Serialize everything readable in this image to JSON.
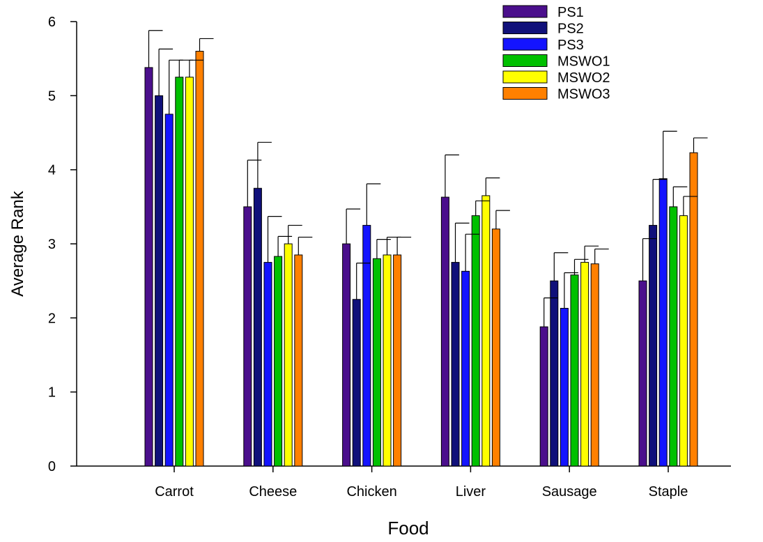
{
  "chart_data": {
    "type": "bar",
    "title": "",
    "xlabel": "Food",
    "ylabel": "Average Rank",
    "ylim": [
      0,
      6
    ],
    "yticks": [
      0,
      1,
      2,
      3,
      4,
      5,
      6
    ],
    "grid": false,
    "legend_position": "top-right",
    "categories": [
      "Carrot",
      "Cheese",
      "Chicken",
      "Liver",
      "Sausage",
      "Staple"
    ],
    "series": [
      {
        "name": "PS1",
        "color": "#4b0f8c",
        "values": [
          5.38,
          3.5,
          3.0,
          3.63,
          1.88,
          2.5
        ],
        "errors": [
          0.5,
          0.63,
          0.47,
          0.57,
          0.39,
          0.57
        ]
      },
      {
        "name": "PS2",
        "color": "#10107a",
        "values": [
          5.0,
          3.75,
          2.25,
          2.75,
          2.5,
          3.25
        ],
        "errors": [
          0.63,
          0.62,
          0.49,
          0.53,
          0.38,
          0.62
        ]
      },
      {
        "name": "PS3",
        "color": "#1414ff",
        "values": [
          4.75,
          2.75,
          3.25,
          2.63,
          2.13,
          3.88
        ],
        "errors": [
          0.73,
          0.62,
          0.56,
          0.5,
          0.48,
          0.64
        ]
      },
      {
        "name": "MSWO1",
        "color": "#00c000",
        "values": [
          5.25,
          2.83,
          2.8,
          3.38,
          2.58,
          3.5
        ],
        "errors": [
          0.23,
          0.27,
          0.26,
          0.2,
          0.21,
          0.27
        ]
      },
      {
        "name": "MSWO2",
        "color": "#ffff00",
        "values": [
          5.25,
          3.0,
          2.85,
          3.65,
          2.75,
          3.38
        ],
        "errors": [
          0.23,
          0.25,
          0.24,
          0.24,
          0.22,
          0.26
        ]
      },
      {
        "name": "MSWO3",
        "color": "#ff8000",
        "values": [
          5.6,
          2.85,
          2.85,
          3.2,
          2.73,
          4.23
        ],
        "errors": [
          0.17,
          0.24,
          0.24,
          0.25,
          0.2,
          0.2
        ]
      }
    ]
  }
}
